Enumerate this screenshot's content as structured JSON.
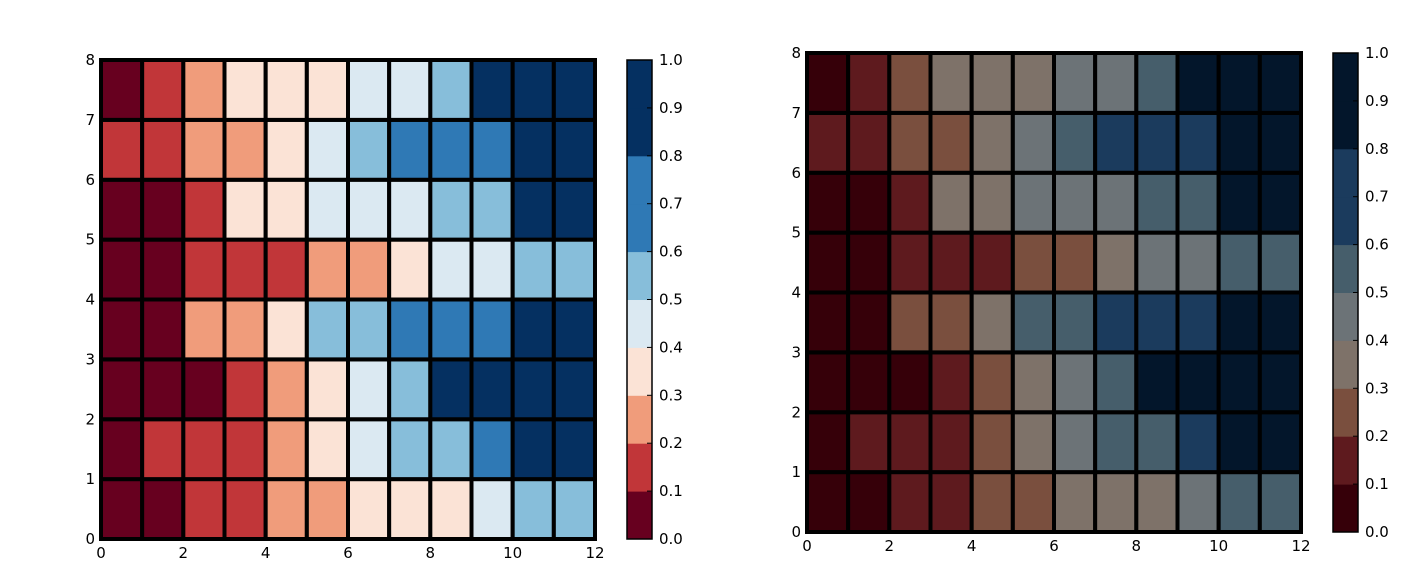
{
  "chart_data": [
    {
      "type": "heatmap",
      "title": "",
      "xlabel": "",
      "ylabel": "",
      "xlim": [
        0,
        12
      ],
      "ylim": [
        0,
        8
      ],
      "x_ticks": [
        "0",
        "2",
        "4",
        "6",
        "8",
        "10",
        "12"
      ],
      "y_ticks": [
        "0",
        "1",
        "2",
        "3",
        "4",
        "5",
        "6",
        "7",
        "8"
      ],
      "grid": false,
      "cell_edge_color": "#000000",
      "colormap": "RdBu (discrete, 10 levels)",
      "color_levels": [
        "#67001f",
        "#c13639",
        "#f09c7b",
        "#fbe3d6",
        "#dbe9f2",
        "#87beda",
        "#2f79b5",
        "#2f79b5",
        "#053061",
        "#053061"
      ],
      "rows_bottom_to_top": [
        [
          0.05,
          0.05,
          0.15,
          0.15,
          0.25,
          0.25,
          0.35,
          0.35,
          0.35,
          0.45,
          0.55,
          0.55
        ],
        [
          0.05,
          0.15,
          0.15,
          0.15,
          0.25,
          0.35,
          0.45,
          0.55,
          0.55,
          0.65,
          0.85,
          0.85
        ],
        [
          0.05,
          0.05,
          0.05,
          0.15,
          0.25,
          0.35,
          0.45,
          0.55,
          0.85,
          0.85,
          0.85,
          0.85
        ],
        [
          0.05,
          0.05,
          0.25,
          0.25,
          0.35,
          0.55,
          0.55,
          0.65,
          0.65,
          0.65,
          0.85,
          0.85
        ],
        [
          0.05,
          0.05,
          0.15,
          0.15,
          0.15,
          0.25,
          0.25,
          0.35,
          0.45,
          0.45,
          0.55,
          0.55
        ],
        [
          0.05,
          0.05,
          0.15,
          0.35,
          0.35,
          0.45,
          0.45,
          0.45,
          0.55,
          0.55,
          0.85,
          0.85
        ],
        [
          0.15,
          0.15,
          0.25,
          0.25,
          0.35,
          0.45,
          0.55,
          0.65,
          0.65,
          0.65,
          0.85,
          0.85
        ],
        [
          0.05,
          0.15,
          0.25,
          0.35,
          0.35,
          0.35,
          0.45,
          0.45,
          0.55,
          0.85,
          0.85,
          0.85
        ]
      ],
      "colorbar": {
        "range": [
          0,
          1
        ],
        "ticks": [
          "0.0",
          "0.1",
          "0.2",
          "0.3",
          "0.4",
          "0.5",
          "0.6",
          "0.7",
          "0.8",
          "0.9",
          "1.0"
        ]
      }
    },
    {
      "type": "heatmap",
      "title": "",
      "xlabel": "",
      "ylabel": "",
      "xlim": [
        0,
        12
      ],
      "ylim": [
        0,
        8
      ],
      "x_ticks": [
        "0",
        "2",
        "4",
        "6",
        "8",
        "10",
        "12"
      ],
      "y_ticks": [
        "0",
        "1",
        "2",
        "3",
        "4",
        "5",
        "6",
        "7",
        "8"
      ],
      "grid": false,
      "cell_edge_color": "#000000",
      "colormap": "desaturated red-grey-blue (discrete, 10 levels)",
      "color_levels": [
        "#360009",
        "#5e1a1e",
        "#7a4f3e",
        "#7e7269",
        "#6c7377",
        "#465e6b",
        "#1b3b5d",
        "#1b3b5d",
        "#03162b",
        "#03162b"
      ],
      "rows_bottom_to_top": [
        [
          0.05,
          0.05,
          0.15,
          0.15,
          0.25,
          0.25,
          0.35,
          0.35,
          0.35,
          0.45,
          0.55,
          0.55
        ],
        [
          0.05,
          0.15,
          0.15,
          0.15,
          0.25,
          0.35,
          0.45,
          0.55,
          0.55,
          0.65,
          0.85,
          0.85
        ],
        [
          0.05,
          0.05,
          0.05,
          0.15,
          0.25,
          0.35,
          0.45,
          0.55,
          0.85,
          0.85,
          0.85,
          0.85
        ],
        [
          0.05,
          0.05,
          0.25,
          0.25,
          0.35,
          0.55,
          0.55,
          0.65,
          0.65,
          0.65,
          0.85,
          0.85
        ],
        [
          0.05,
          0.05,
          0.15,
          0.15,
          0.15,
          0.25,
          0.25,
          0.35,
          0.45,
          0.45,
          0.55,
          0.55
        ],
        [
          0.05,
          0.05,
          0.15,
          0.35,
          0.35,
          0.45,
          0.45,
          0.45,
          0.55,
          0.55,
          0.85,
          0.85
        ],
        [
          0.15,
          0.15,
          0.25,
          0.25,
          0.35,
          0.45,
          0.55,
          0.65,
          0.65,
          0.65,
          0.85,
          0.85
        ],
        [
          0.05,
          0.15,
          0.25,
          0.35,
          0.35,
          0.35,
          0.45,
          0.45,
          0.55,
          0.85,
          0.85,
          0.85
        ]
      ],
      "colorbar": {
        "range": [
          0,
          1
        ],
        "ticks": [
          "0.0",
          "0.1",
          "0.2",
          "0.3",
          "0.4",
          "0.5",
          "0.6",
          "0.7",
          "0.8",
          "0.9",
          "1.0"
        ]
      }
    }
  ]
}
